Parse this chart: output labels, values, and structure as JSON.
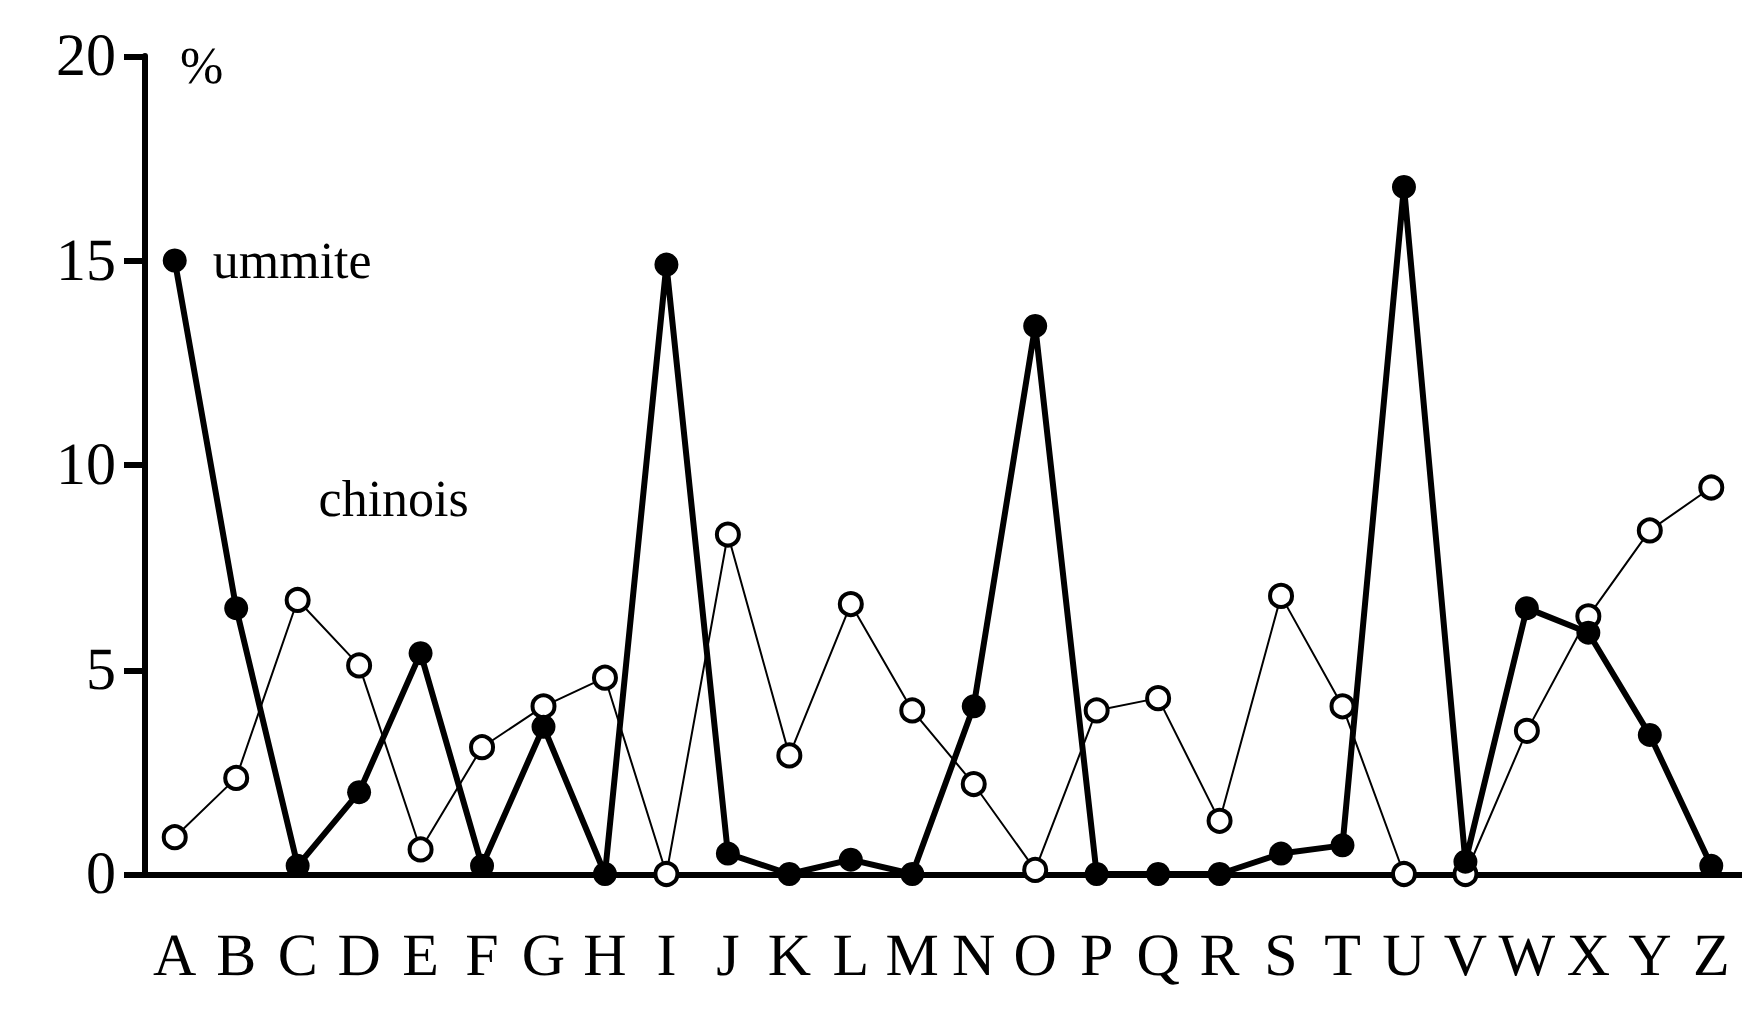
{
  "chart_data": {
    "type": "line",
    "ylabel": "%",
    "categories": [
      "A",
      "B",
      "C",
      "D",
      "E",
      "F",
      "G",
      "H",
      "I",
      "J",
      "K",
      "L",
      "M",
      "N",
      "O",
      "P",
      "Q",
      "R",
      "S",
      "T",
      "U",
      "V",
      "W",
      "X",
      "Y",
      "Z"
    ],
    "series": [
      {
        "name": "ummite",
        "color": "#000000",
        "values": [
          15.0,
          6.5,
          0.2,
          2.0,
          5.4,
          0.2,
          3.6,
          0,
          14.9,
          0.5,
          0,
          0.35,
          0,
          4.1,
          13.4,
          0,
          0,
          0,
          0.5,
          0.7,
          16.8,
          0.3,
          6.5,
          5.9,
          3.4,
          0.2
        ]
      },
      {
        "name": "chinois",
        "color": "#000000",
        "values": [
          0.9,
          2.35,
          6.7,
          5.1,
          0.6,
          3.1,
          4.1,
          4.8,
          0,
          8.3,
          2.9,
          6.6,
          4.0,
          2.2,
          0.1,
          4.0,
          4.3,
          1.3,
          6.8,
          4.1,
          0,
          0,
          3.5,
          6.3,
          8.4,
          9.45
        ]
      }
    ],
    "ylim": [
      0,
      20
    ],
    "yticks": [
      0,
      5,
      10,
      15,
      20
    ],
    "grid": false,
    "legend": false,
    "marker": "circle",
    "line_style": "solid"
  }
}
